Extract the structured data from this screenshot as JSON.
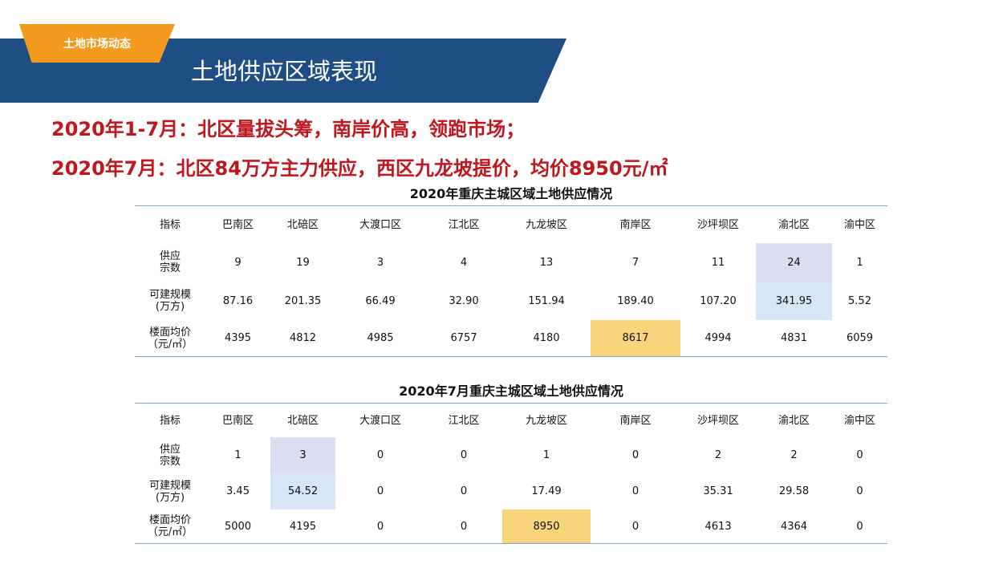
{
  "header": {
    "tag": "土地市场动态",
    "title": "土地供应区域表现"
  },
  "headlines": [
    "2020年1-7月：北区量拔头筹，南岸价高，领跑市场；",
    "2020年7月：北区84万方主力供应，西区九龙坡提价，均价8950元/㎡"
  ],
  "tables": [
    {
      "title": "2020年重庆主城区域土地供应情况",
      "header": [
        "指标",
        "巴南区",
        "北碚区",
        "大渡口区",
        "江北区",
        "九龙坡区",
        "南岸区",
        "沙坪坝区",
        "渝北区",
        "渝中区"
      ],
      "rows": [
        {
          "label": "供应\n宗数",
          "values": [
            "9",
            "19",
            "3",
            "4",
            "13",
            "7",
            "11",
            "24",
            "1"
          ]
        },
        {
          "label": "可建规模\n(万方)",
          "values": [
            "87.16",
            "201.35",
            "66.49",
            "32.90",
            "151.94",
            "189.40",
            "107.20",
            "341.95",
            "5.52"
          ]
        },
        {
          "label": "楼面均价\n（元/㎡）",
          "values": [
            "4395",
            "4812",
            "4985",
            "6757",
            "4180",
            "8617",
            "4994",
            "4831",
            "6059"
          ]
        }
      ]
    },
    {
      "title": "2020年7月重庆主城区域土地供应情况",
      "header": [
        "指标",
        "巴南区",
        "北碚区",
        "大渡口区",
        "江北区",
        "九龙坡区",
        "南岸区",
        "沙坪坝区",
        "渝北区",
        "渝中区"
      ],
      "rows": [
        {
          "label": "供应\n宗数",
          "values": [
            "1",
            "3",
            "0",
            "0",
            "1",
            "0",
            "2",
            "2",
            "0"
          ]
        },
        {
          "label": "可建规模\n(万方)",
          "values": [
            "3.45",
            "54.52",
            "0",
            "0",
            "17.49",
            "0",
            "35.31",
            "29.58",
            "0"
          ]
        },
        {
          "label": "楼面均价\n（元/㎡）",
          "values": [
            "5000",
            "4195",
            "0",
            "0",
            "8950",
            "0",
            "4613",
            "4364",
            "0"
          ]
        }
      ]
    }
  ],
  "colors": {
    "banner": "#1f4e84",
    "tag": "#f39a1e",
    "headline": "#c0161d",
    "highlight_blue": "#d9dff0",
    "highlight_yellow": "#f8d57a"
  }
}
